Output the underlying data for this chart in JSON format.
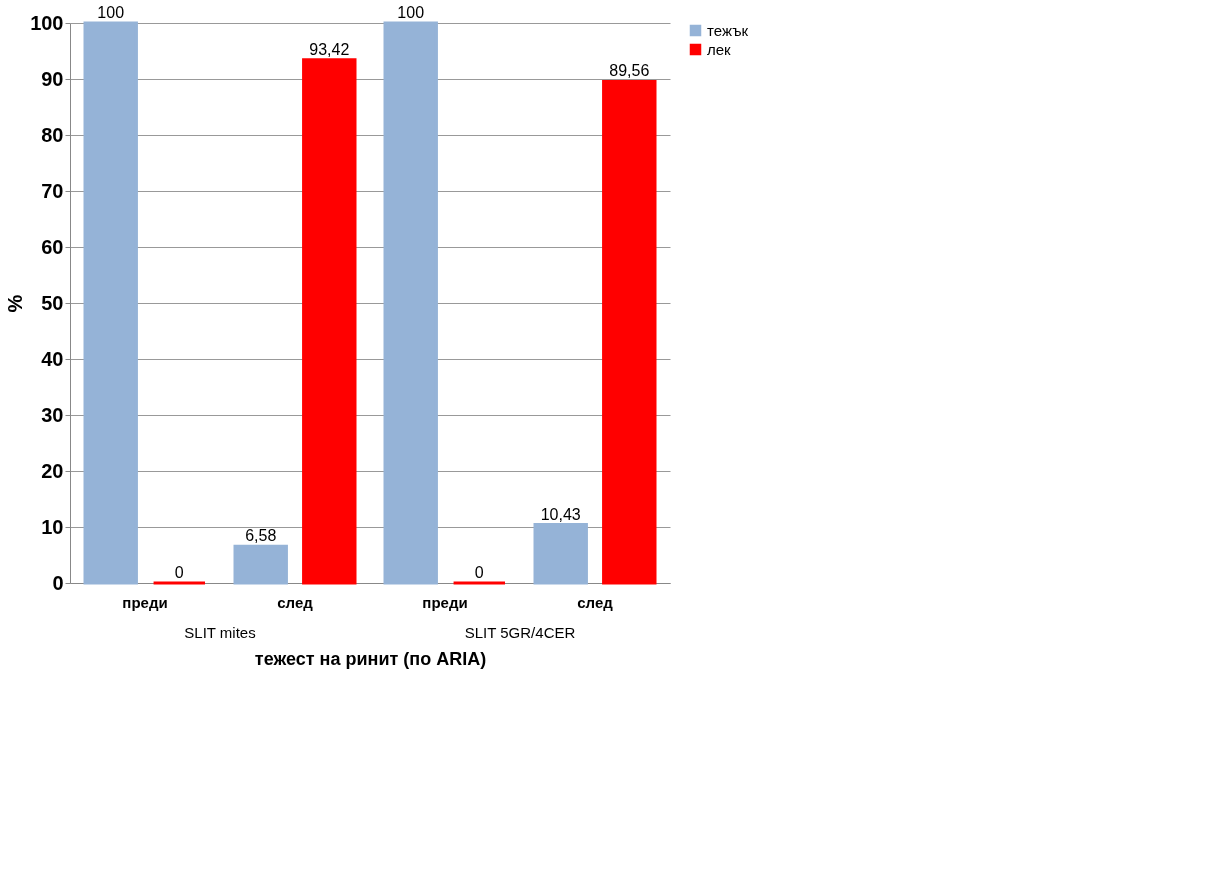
{
  "chart_data": {
    "type": "bar",
    "xlabel": "тежест на ринит (по ARIA)",
    "ylabel": "%",
    "categories": [
      "преди",
      "след",
      "преди",
      "след"
    ],
    "series": [
      {
        "name": "тежък",
        "color": "#95b3d7",
        "values": [
          100,
          6.58,
          100,
          10.43
        ],
        "value_labels": [
          "100",
          "6,58",
          "100",
          "10,43"
        ]
      },
      {
        "name": "лек",
        "color": "#ff0000",
        "values": [
          0,
          93.42,
          0,
          89.56
        ],
        "value_labels": [
          "0",
          "93,42",
          "0",
          "89,56"
        ]
      }
    ],
    "annotations": [
      "SLIT mites",
      "SLIT 5GR/4CER"
    ],
    "ylim": [
      0,
      100
    ],
    "yticks": [
      0,
      10,
      20,
      30,
      40,
      50,
      60,
      70,
      80,
      90,
      100
    ],
    "grid": "y",
    "legend": "right"
  }
}
